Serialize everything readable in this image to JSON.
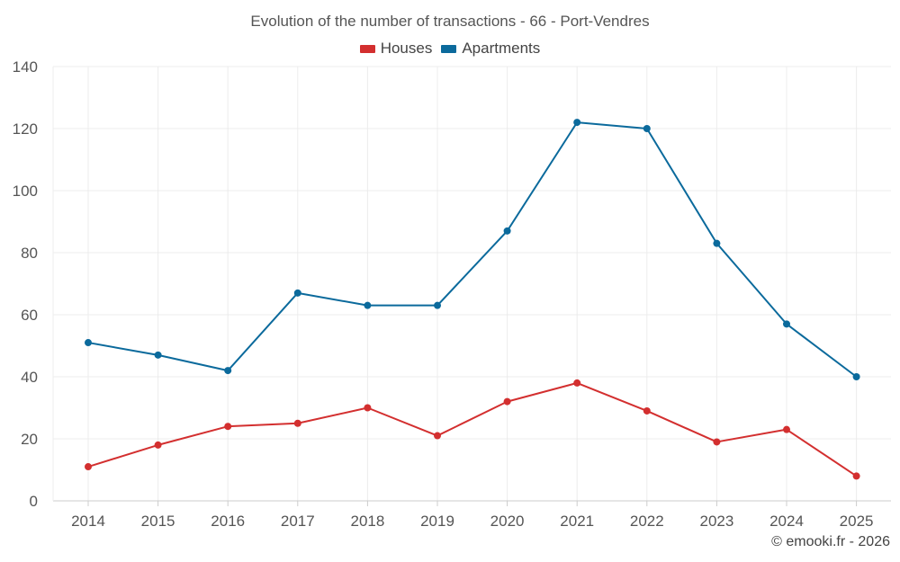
{
  "chart_data": {
    "type": "line",
    "title": "Evolution of the number of transactions - 66 - Port-Vendres",
    "categories": [
      "2014",
      "2015",
      "2016",
      "2017",
      "2018",
      "2019",
      "2020",
      "2021",
      "2022",
      "2023",
      "2024",
      "2025"
    ],
    "series": [
      {
        "name": "Houses",
        "color": "#d32f2f",
        "values": [
          11,
          18,
          24,
          25,
          30,
          21,
          32,
          38,
          29,
          19,
          23,
          8
        ]
      },
      {
        "name": "Apartments",
        "color": "#0b6a9c",
        "values": [
          51,
          47,
          42,
          67,
          63,
          63,
          87,
          122,
          120,
          83,
          57,
          40
        ]
      }
    ],
    "ylim": [
      0,
      140
    ],
    "yticks": [
      0,
      20,
      40,
      60,
      80,
      100,
      120,
      140
    ],
    "grid": true,
    "legend_position": "top-center",
    "xlabel": "",
    "ylabel": ""
  },
  "footer": {
    "credit": "© emooki.fr - 2026"
  }
}
